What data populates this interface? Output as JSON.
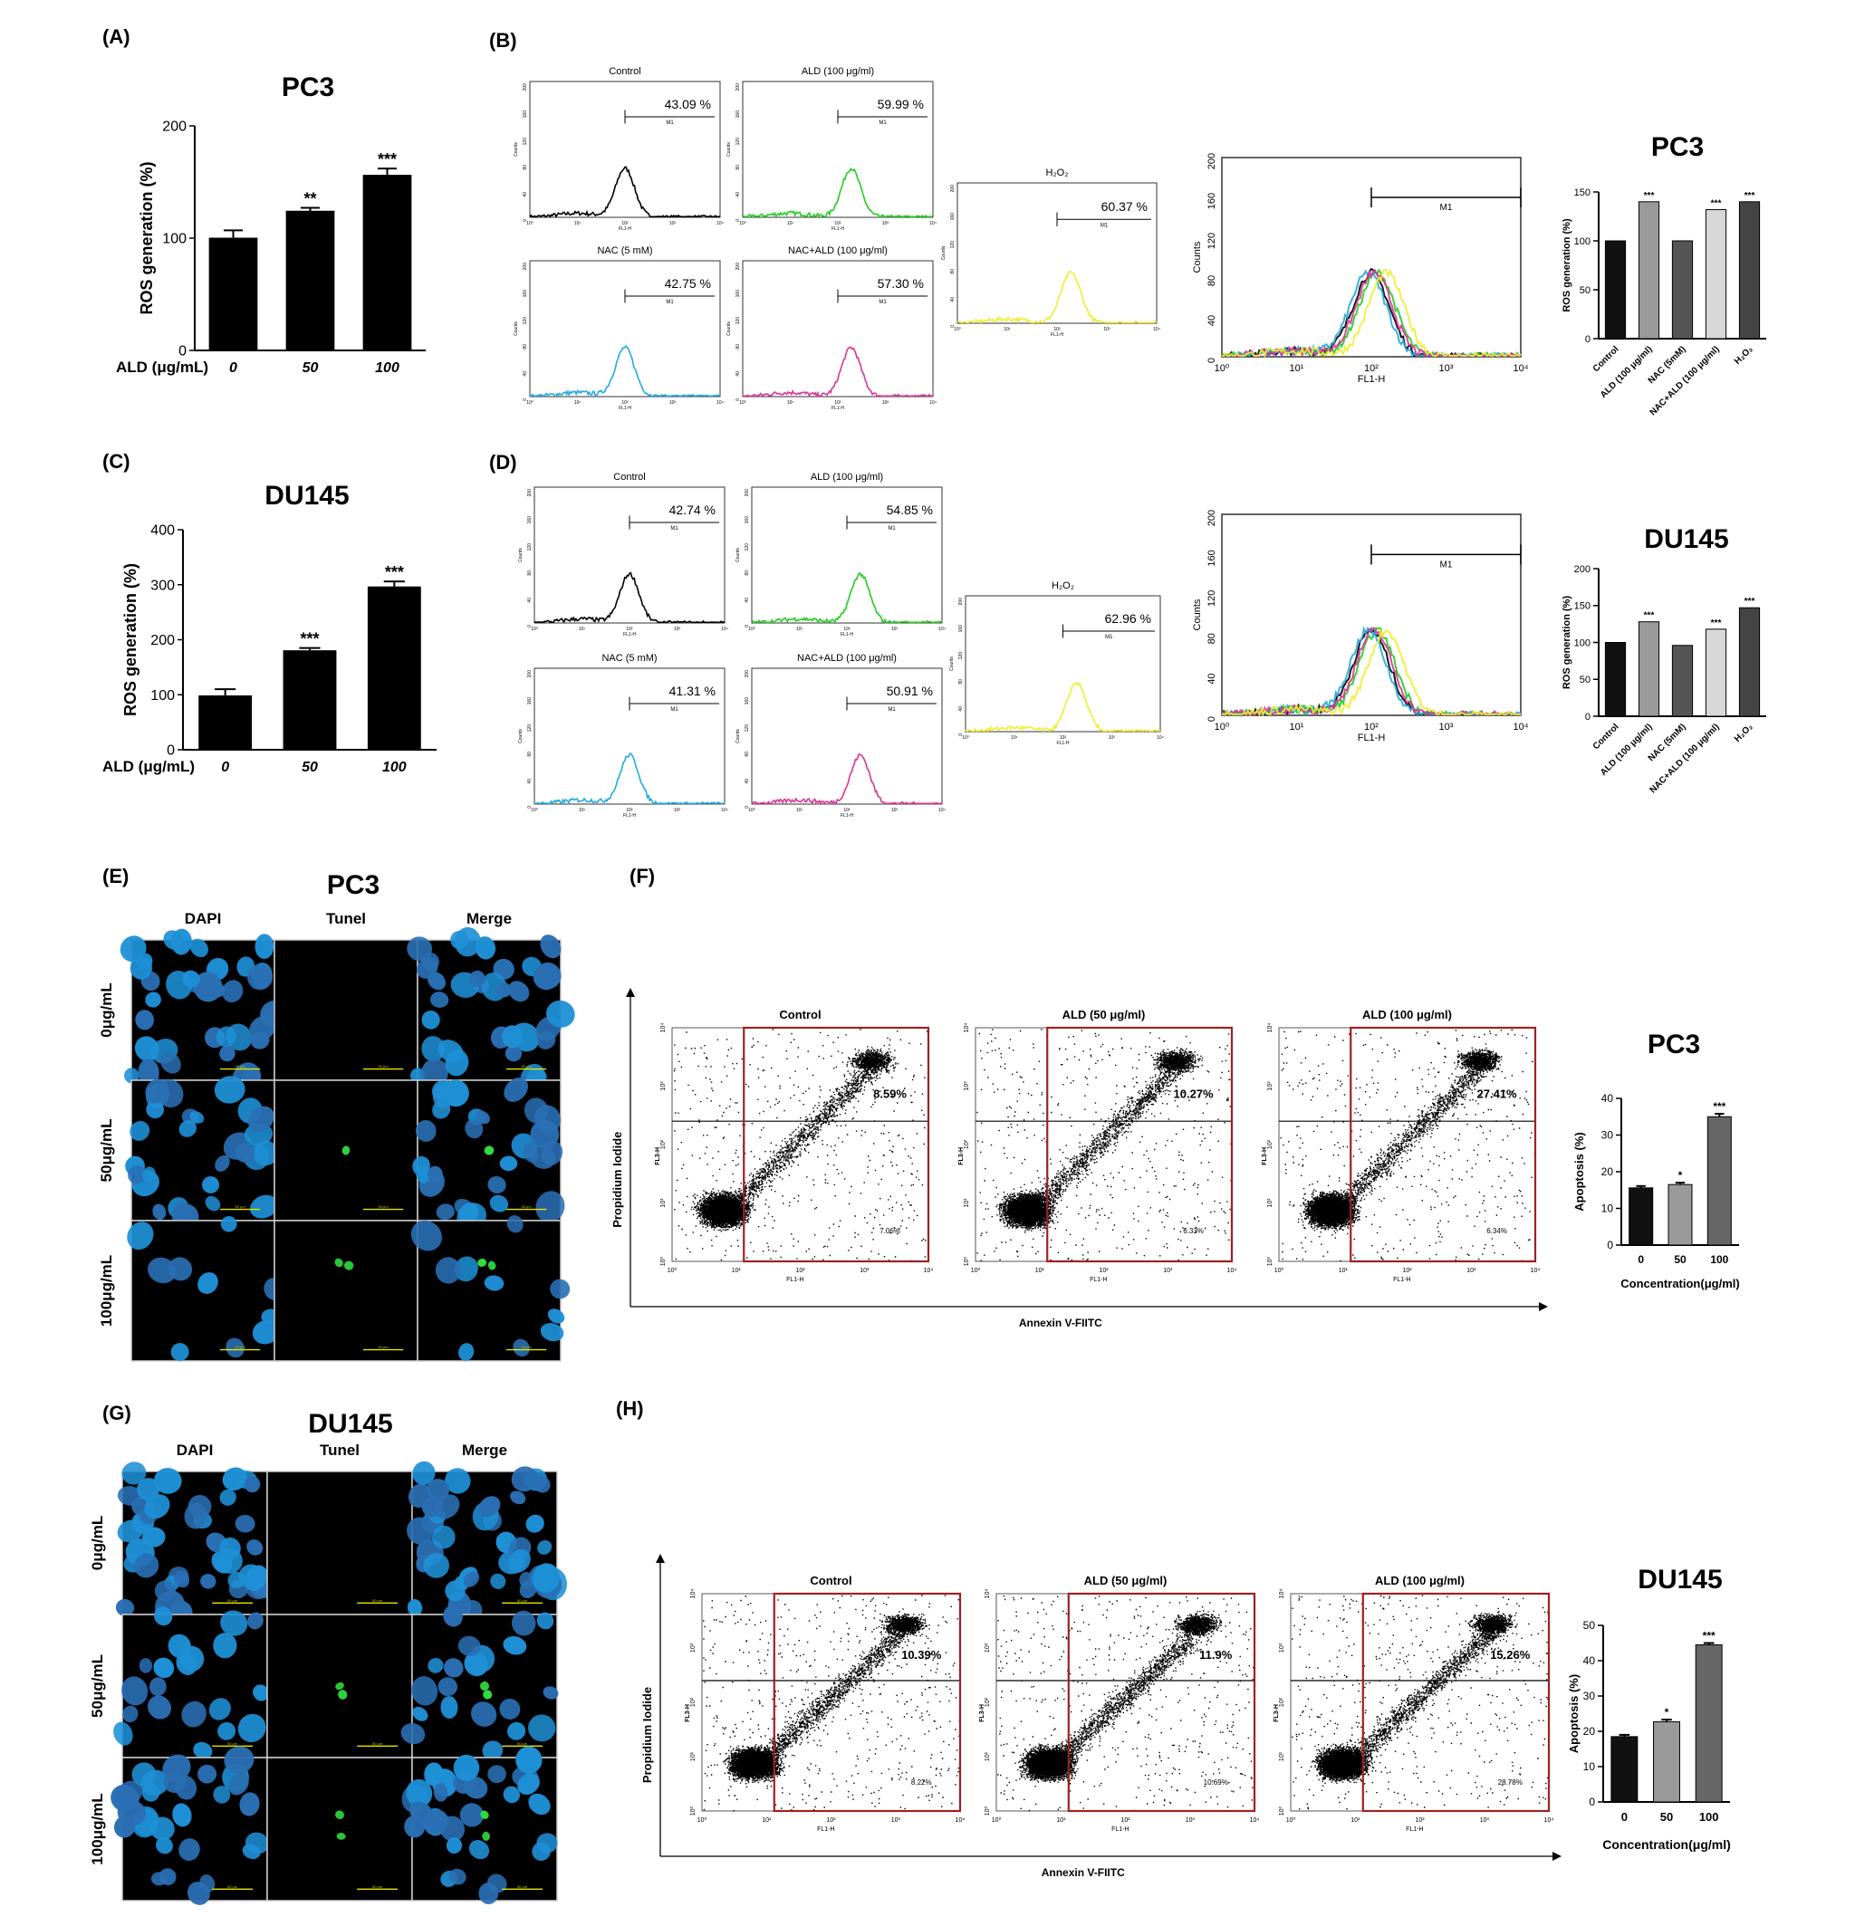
{
  "panels": {
    "A": {
      "letter": "(A)",
      "title": "PC3",
      "chart_data": {
        "type": "bar",
        "title": "PC3",
        "ylabel": "ROS generation (%)",
        "xlabel": "ALD (μg/mL)",
        "categories": [
          "0",
          "50",
          "100"
        ],
        "values": [
          100,
          124,
          156
        ],
        "errors": [
          7,
          3,
          6
        ],
        "significance": [
          "",
          "**",
          "***"
        ],
        "ylim": [
          0,
          200
        ],
        "yticks": [
          0,
          100,
          200
        ]
      }
    },
    "B": {
      "letter": "(B)",
      "histograms": [
        {
          "title": "Control",
          "percent": "43.09 %",
          "color": "#000000",
          "gate": "M1"
        },
        {
          "title": "ALD (100 μg/ml)",
          "percent": "59.99 %",
          "color": "#22cc22",
          "gate": "M1"
        },
        {
          "title": "NAC (5 mM)",
          "percent": "42.75 %",
          "color": "#22aadd",
          "gate": "M1"
        },
        {
          "title": "NAC+ALD (100 μg/ml)",
          "percent": "57.30 %",
          "color": "#dd3399",
          "gate": "M1"
        },
        {
          "title": "H₂O₂",
          "percent": "60.37 %",
          "color": "#eeee33",
          "gate": "M1"
        }
      ],
      "overlay": {
        "ylabel": "Counts",
        "xlabel": "FL1-H",
        "gate": "M1",
        "yticks": [
          "0",
          "40",
          "80",
          "120",
          "160",
          "200"
        ],
        "xticks": [
          "10⁰",
          "10¹",
          "10²",
          "10³",
          "10⁴"
        ]
      },
      "chart_data": {
        "type": "bar",
        "title": "PC3",
        "ylabel": "ROS generation (%)",
        "categories": [
          "Control",
          "ALD (100 μg/ml)",
          "NAC (5mM)",
          "NAC+ALD (100 μg/ml)",
          "H₂O₂"
        ],
        "values": [
          100,
          140,
          100,
          132,
          140
        ],
        "significance": [
          "",
          "***",
          "",
          "***",
          "***"
        ],
        "colors": [
          "#111111",
          "#9a9a9a",
          "#555555",
          "#d8d8d8",
          "#444444"
        ],
        "ylim": [
          0,
          150
        ],
        "yticks": [
          0,
          50,
          100,
          150
        ]
      }
    },
    "C": {
      "letter": "(C)",
      "title": "DU145",
      "chart_data": {
        "type": "bar",
        "title": "DU145",
        "ylabel": "ROS generation  (%)",
        "xlabel": "ALD (μg/mL)",
        "categories": [
          "0",
          "50",
          "100"
        ],
        "values": [
          98,
          180,
          296
        ],
        "errors": [
          12,
          5,
          10
        ],
        "significance": [
          "",
          "***",
          "***"
        ],
        "ylim": [
          0,
          400
        ],
        "yticks": [
          0,
          100,
          200,
          300,
          400
        ]
      }
    },
    "D": {
      "letter": "(D)",
      "histograms": [
        {
          "title": "Control",
          "percent": "42.74 %",
          "color": "#000000",
          "gate": "M1"
        },
        {
          "title": "ALD (100 μg/ml)",
          "percent": "54.85 %",
          "color": "#22cc22",
          "gate": "M1"
        },
        {
          "title": "NAC (5 mM)",
          "percent": "41.31 %",
          "color": "#22aadd",
          "gate": "M1"
        },
        {
          "title": "NAC+ALD (100 μg/ml)",
          "percent": "50.91 %",
          "color": "#dd3399",
          "gate": "M1"
        },
        {
          "title": "H₂O₂",
          "percent": "62.96 %",
          "color": "#eeee33",
          "gate": "M1"
        }
      ],
      "overlay": {
        "ylabel": "Counts",
        "xlabel": "FL1-H",
        "gate": "M1",
        "yticks": [
          "0",
          "40",
          "80",
          "120",
          "160",
          "200"
        ],
        "xticks": [
          "10⁰",
          "10¹",
          "10²",
          "10³",
          "10⁴"
        ]
      },
      "chart_data": {
        "type": "bar",
        "title": "DU145",
        "ylabel": "ROS generation (%)",
        "categories": [
          "Control",
          "ALD (100 μg/ml)",
          "NAC (5mM)",
          "NAC+ALD (100 μg/ml)",
          "H₂O₂"
        ],
        "values": [
          100,
          128,
          96,
          118,
          147
        ],
        "significance": [
          "",
          "***",
          "",
          "***",
          "***"
        ],
        "colors": [
          "#111111",
          "#9a9a9a",
          "#555555",
          "#d8d8d8",
          "#444444"
        ],
        "ylim": [
          0,
          200
        ],
        "yticks": [
          0,
          50,
          100,
          150,
          200
        ]
      }
    },
    "E": {
      "letter": "(E)",
      "title": "PC3",
      "columns": [
        "DAPI",
        "Tunel",
        "Merge"
      ],
      "rows": [
        "0μg/mL",
        "50μg/mL",
        "100μg/mL"
      ]
    },
    "F": {
      "letter": "(F)",
      "ylabel": "Propidium Iodide",
      "xlabel": "Annexin V-FIITC",
      "plots": [
        {
          "title": "Control",
          "upper": "8.59%",
          "lower": "7.06%"
        },
        {
          "title": "ALD (50 μg/ml)",
          "upper": "10.27%",
          "lower": "6.33%"
        },
        {
          "title": "ALD (100 μg/ml)",
          "upper": "27.41%",
          "lower": "6.34%"
        }
      ],
      "plot_ylabel": "FL3-H",
      "plot_xlabel": "FL1-H",
      "chart_data": {
        "type": "bar",
        "title": "PC3",
        "ylabel": "Apoptosis (%)",
        "xlabel": "Concentration(μg/ml)",
        "categories": [
          "0",
          "50",
          "100"
        ],
        "values": [
          15.6,
          16.5,
          35
        ],
        "errors": [
          0.5,
          0.5,
          0.8
        ],
        "significance": [
          "",
          "*",
          "***"
        ],
        "colors": [
          "#111111",
          "#9a9a9a",
          "#666666"
        ],
        "ylim": [
          0,
          40
        ],
        "yticks": [
          0,
          10,
          20,
          30,
          40
        ]
      }
    },
    "G": {
      "letter": "(G)",
      "title": "DU145",
      "columns": [
        "DAPI",
        "Tunel",
        "Merge"
      ],
      "rows": [
        "0μg/mL",
        "50μg/mL",
        "100μg/mL"
      ]
    },
    "H": {
      "letter": "(H)",
      "ylabel": "Propidium Iodide",
      "xlabel": "Annexin V-FIITC",
      "plots": [
        {
          "title": "Control",
          "upper": "10.39%",
          "lower": "8.22%"
        },
        {
          "title": "ALD (50 μg/ml)",
          "upper": "11.9%",
          "lower": "10.69%"
        },
        {
          "title": "ALD (100 μg/ml)",
          "upper": "15.26%",
          "lower": "28.78%"
        }
      ],
      "plot_ylabel": "FL3-H",
      "plot_xlabel": "FL1-H",
      "chart_data": {
        "type": "bar",
        "title": "DU145",
        "ylabel": "Apoptosis (%)",
        "xlabel": "Concentration(μg/ml)",
        "categories": [
          "0",
          "50",
          "100"
        ],
        "values": [
          18.5,
          22.7,
          44.5
        ],
        "errors": [
          0.5,
          0.6,
          0.5
        ],
        "significance": [
          "",
          "*",
          "***"
        ],
        "colors": [
          "#111111",
          "#9a9a9a",
          "#666666"
        ],
        "ylim": [
          0,
          50
        ],
        "yticks": [
          0,
          10,
          20,
          30,
          40,
          50
        ]
      }
    }
  },
  "microscopy_scale": "50 μm",
  "log_ticks": [
    "10⁰",
    "10¹",
    "10²",
    "10³",
    "10⁴"
  ]
}
